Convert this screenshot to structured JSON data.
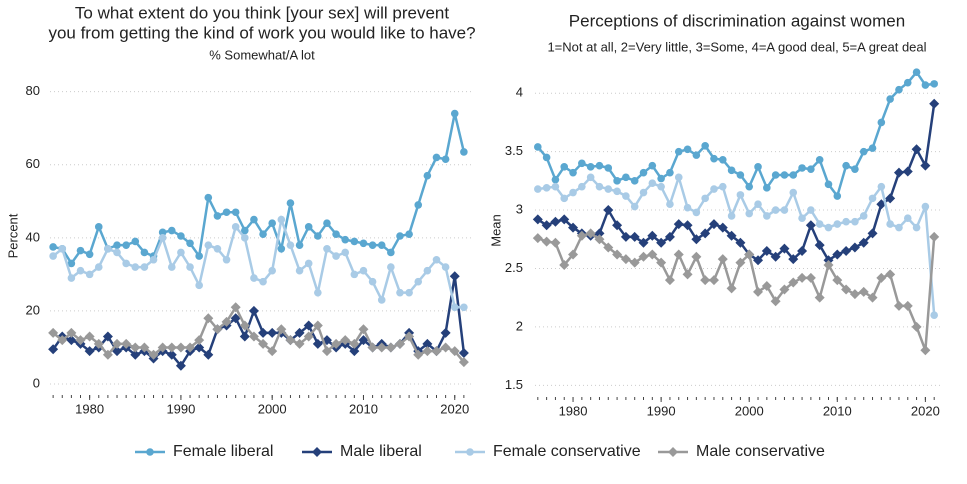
{
  "chart_data": [
    {
      "type": "line",
      "title": [
        "To what extent do you think [your sex] will prevent",
        "you from getting the kind of work you would like to have?"
      ],
      "subtitle": "% Somewhat/A lot",
      "y_label": "Percent",
      "x": [
        1976,
        1977,
        1978,
        1979,
        1980,
        1981,
        1982,
        1983,
        1984,
        1985,
        1986,
        1987,
        1988,
        1989,
        1990,
        1991,
        1992,
        1993,
        1994,
        1995,
        1996,
        1997,
        1998,
        1999,
        2000,
        2001,
        2002,
        2003,
        2004,
        2005,
        2006,
        2007,
        2008,
        2009,
        2010,
        2011,
        2012,
        2013,
        2014,
        2015,
        2016,
        2017,
        2018,
        2019,
        2020,
        2021
      ],
      "xlim": [
        1975,
        2022
      ],
      "xticks": [
        1980,
        1990,
        2000,
        2010,
        2020
      ],
      "ylim": [
        -3,
        84
      ],
      "yticks": [
        0,
        20,
        40,
        60,
        80
      ],
      "grid": true,
      "series": [
        {
          "name": "Female liberal",
          "color": "#5aa7d0",
          "marker": "circle",
          "values": [
            37.5,
            37,
            33,
            36.5,
            35.5,
            43,
            37,
            38,
            38,
            39,
            36,
            35,
            41.5,
            42,
            40.5,
            38.5,
            35,
            51,
            46,
            47,
            47,
            42,
            45,
            41,
            44,
            37,
            49.5,
            38,
            43,
            40.5,
            44,
            41,
            39.5,
            39,
            38.5,
            38,
            38,
            36,
            40.5,
            41,
            49,
            57,
            62,
            61.5,
            74,
            63.5
          ]
        },
        {
          "name": "Male liberal",
          "color": "#25407a",
          "marker": "diamond",
          "values": [
            9.5,
            13,
            12,
            11,
            9,
            10,
            13,
            9,
            10,
            8,
            9,
            7,
            9,
            8,
            5,
            9,
            10,
            8,
            15,
            16,
            18,
            13,
            20,
            14,
            14,
            14,
            12,
            14,
            16,
            11,
            12,
            10,
            11,
            9,
            12,
            10,
            11,
            10,
            11,
            14,
            9,
            11,
            9,
            14,
            29.5,
            8.5
          ]
        },
        {
          "name": "Female conservative",
          "color": "#a9cbe6",
          "marker": "circle",
          "values": [
            35,
            37,
            29,
            31,
            30,
            32,
            37,
            36,
            33,
            32,
            32,
            34,
            40,
            32,
            36,
            32,
            27,
            38,
            37,
            34,
            43,
            40,
            29,
            28,
            31,
            45,
            38,
            31,
            33,
            25,
            37,
            35,
            36,
            30,
            31,
            28,
            23,
            32,
            25,
            25,
            28,
            31,
            34,
            32,
            21,
            21
          ]
        },
        {
          "name": "Male conservative",
          "color": "#999999",
          "marker": "diamond",
          "values": [
            14,
            12,
            14,
            12,
            13,
            11,
            8,
            11,
            11,
            10,
            10,
            8,
            10,
            10,
            10,
            10,
            12,
            18,
            15,
            17,
            21,
            16,
            13,
            11,
            9,
            15,
            12,
            11,
            13,
            16,
            9,
            11,
            12,
            11,
            15,
            10,
            10,
            10,
            11,
            13,
            8,
            9,
            9,
            10,
            9,
            6
          ]
        }
      ]
    },
    {
      "type": "line",
      "title": [
        "Perceptions of discrimination against women"
      ],
      "subtitle": "1=Not at all, 2=Very little, 3=Some, 4=A good deal, 5=A great deal",
      "y_label": "Mean",
      "x": [
        1976,
        1977,
        1978,
        1979,
        1980,
        1981,
        1982,
        1983,
        1984,
        1985,
        1986,
        1987,
        1988,
        1989,
        1990,
        1991,
        1992,
        1993,
        1994,
        1995,
        1996,
        1997,
        1998,
        1999,
        2000,
        2001,
        2002,
        2003,
        2004,
        2005,
        2006,
        2007,
        2008,
        2009,
        2010,
        2011,
        2012,
        2013,
        2014,
        2015,
        2016,
        2017,
        2018,
        2019,
        2020,
        2021
      ],
      "xlim": [
        1975,
        2022
      ],
      "xticks": [
        1980,
        1990,
        2000,
        2010,
        2020
      ],
      "ylim": [
        1.4,
        4.25
      ],
      "yticks": [
        1.5,
        2,
        2.5,
        3,
        3.5,
        4
      ],
      "grid": true,
      "series": [
        {
          "color": "#5aa7d0",
          "marker": "circle",
          "values": [
            3.54,
            3.45,
            3.26,
            3.37,
            3.32,
            3.4,
            3.37,
            3.38,
            3.36,
            3.25,
            3.28,
            3.25,
            3.32,
            3.38,
            3.27,
            3.32,
            3.5,
            3.52,
            3.47,
            3.55,
            3.44,
            3.43,
            3.34,
            3.3,
            3.2,
            3.37,
            3.19,
            3.3,
            3.3,
            3.3,
            3.36,
            3.35,
            3.43,
            3.22,
            3.12,
            3.38,
            3.35,
            3.5,
            3.53,
            3.75,
            3.95,
            4.03,
            4.09,
            4.18,
            4.07,
            4.08
          ]
        },
        {
          "color": "#25407a",
          "marker": "diamond",
          "values": [
            2.92,
            2.87,
            2.9,
            2.92,
            2.85,
            2.8,
            2.78,
            2.8,
            3.0,
            2.87,
            2.77,
            2.77,
            2.72,
            2.78,
            2.72,
            2.77,
            2.88,
            2.87,
            2.75,
            2.8,
            2.88,
            2.85,
            2.78,
            2.72,
            2.62,
            2.57,
            2.65,
            2.6,
            2.67,
            2.58,
            2.65,
            2.87,
            2.7,
            2.57,
            2.62,
            2.65,
            2.68,
            2.72,
            2.8,
            3.05,
            3.1,
            3.32,
            3.33,
            3.52,
            3.38,
            3.91
          ]
        },
        {
          "color": "#a9cbe6",
          "marker": "circle",
          "values": [
            3.18,
            3.19,
            3.2,
            3.1,
            3.15,
            3.2,
            3.28,
            3.2,
            3.18,
            3.16,
            3.12,
            3.03,
            3.15,
            3.23,
            3.2,
            3.05,
            3.28,
            3.02,
            2.98,
            3.1,
            3.18,
            3.2,
            2.95,
            3.13,
            2.97,
            3.05,
            2.95,
            3.0,
            3.0,
            3.15,
            2.93,
            3.0,
            2.88,
            2.85,
            2.88,
            2.9,
            2.9,
            2.95,
            3.1,
            3.2,
            2.88,
            2.85,
            2.93,
            2.85,
            3.03,
            2.1
          ]
        },
        {
          "color": "#999999",
          "marker": "diamond",
          "values": [
            2.76,
            2.73,
            2.72,
            2.53,
            2.62,
            2.78,
            2.8,
            2.75,
            2.68,
            2.62,
            2.58,
            2.55,
            2.6,
            2.62,
            2.55,
            2.4,
            2.62,
            2.45,
            2.6,
            2.4,
            2.4,
            2.58,
            2.33,
            2.55,
            2.62,
            2.3,
            2.35,
            2.22,
            2.32,
            2.38,
            2.42,
            2.42,
            2.25,
            2.53,
            2.4,
            2.32,
            2.28,
            2.3,
            2.25,
            2.42,
            2.45,
            2.18,
            2.18,
            2.0,
            1.8,
            2.77
          ]
        }
      ]
    }
  ]
}
